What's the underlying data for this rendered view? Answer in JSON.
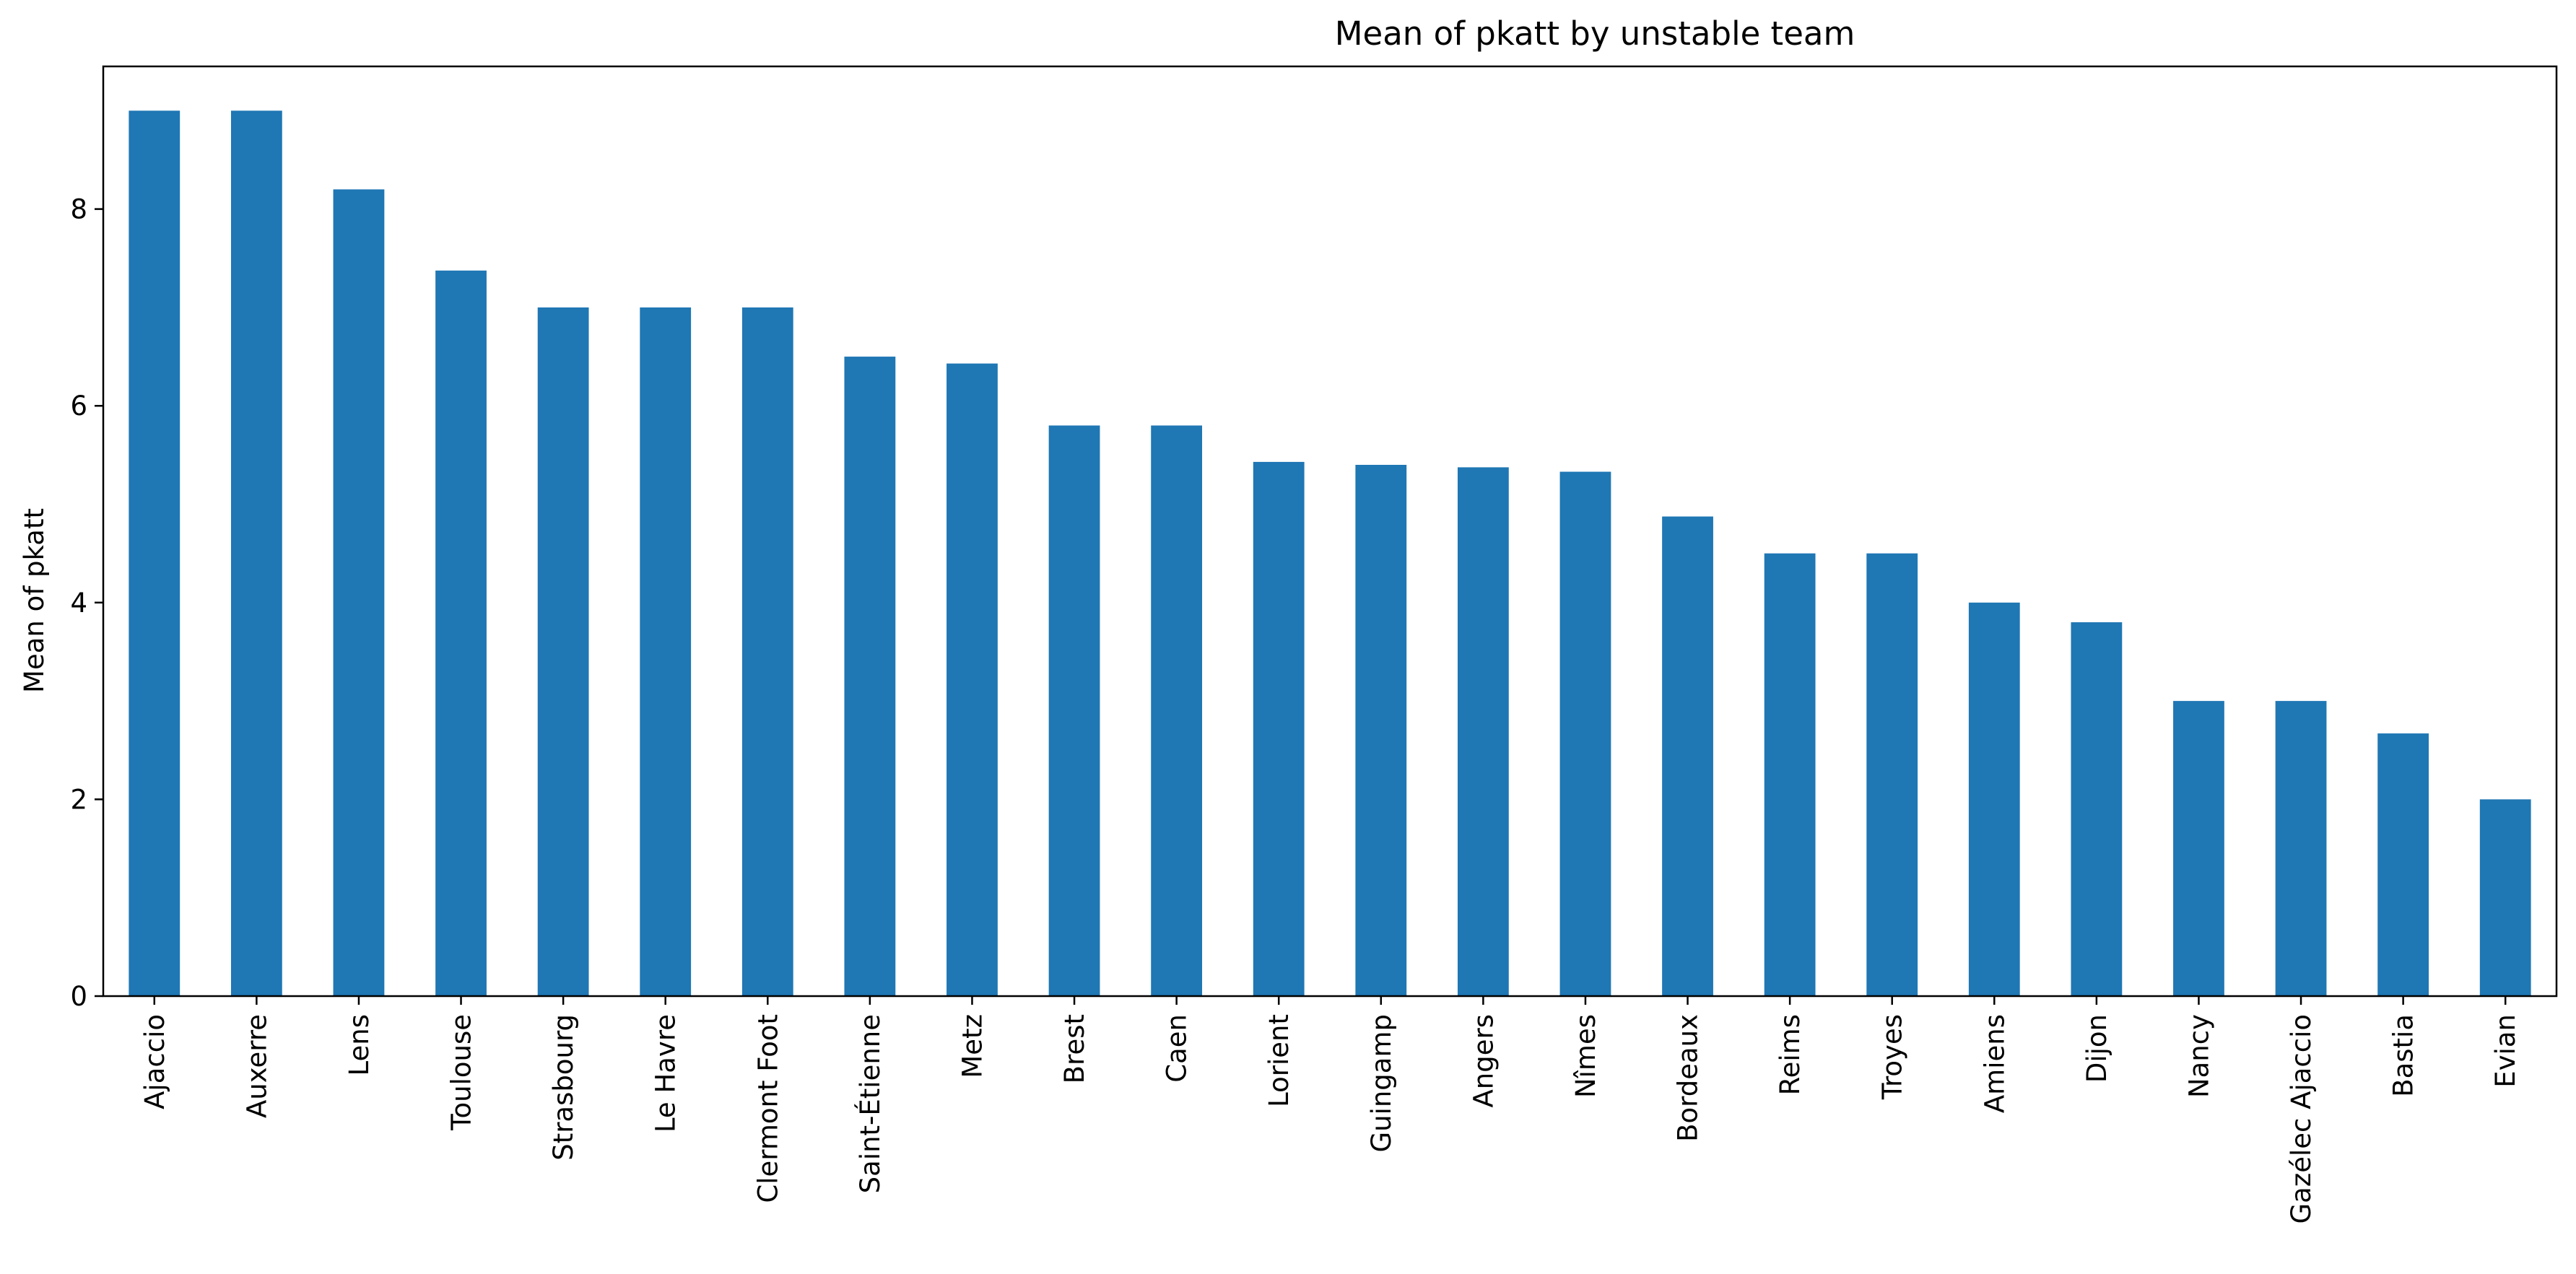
{
  "chart_data": {
    "type": "bar",
    "title": "Mean of pkatt by unstable team",
    "xlabel": "",
    "ylabel": "Mean of pkatt",
    "ylim": [
      0,
      9.45
    ],
    "yticks": [
      0,
      2,
      4,
      6,
      8
    ],
    "grid": false,
    "bar_color": "#1f77b4",
    "categories": [
      "Ajaccio",
      "Auxerre",
      "Lens",
      "Toulouse",
      "Strasbourg",
      "Le Havre",
      "Clermont Foot",
      "Saint-Étienne",
      "Metz",
      "Brest",
      "Caen",
      "Lorient",
      "Guingamp",
      "Angers",
      "Nîmes",
      "Bordeaux",
      "Reims",
      "Troyes",
      "Amiens",
      "Dijon",
      "Nancy",
      "Gazélec Ajaccio",
      "Bastia",
      "Evian"
    ],
    "values": [
      9.0,
      9.0,
      8.2,
      7.375,
      7.0,
      7.0,
      7.0,
      6.5,
      6.43,
      5.8,
      5.8,
      5.43,
      5.4,
      5.375,
      5.33,
      4.875,
      4.5,
      4.5,
      4.0,
      3.8,
      3.0,
      3.0,
      2.67,
      2.0
    ]
  }
}
